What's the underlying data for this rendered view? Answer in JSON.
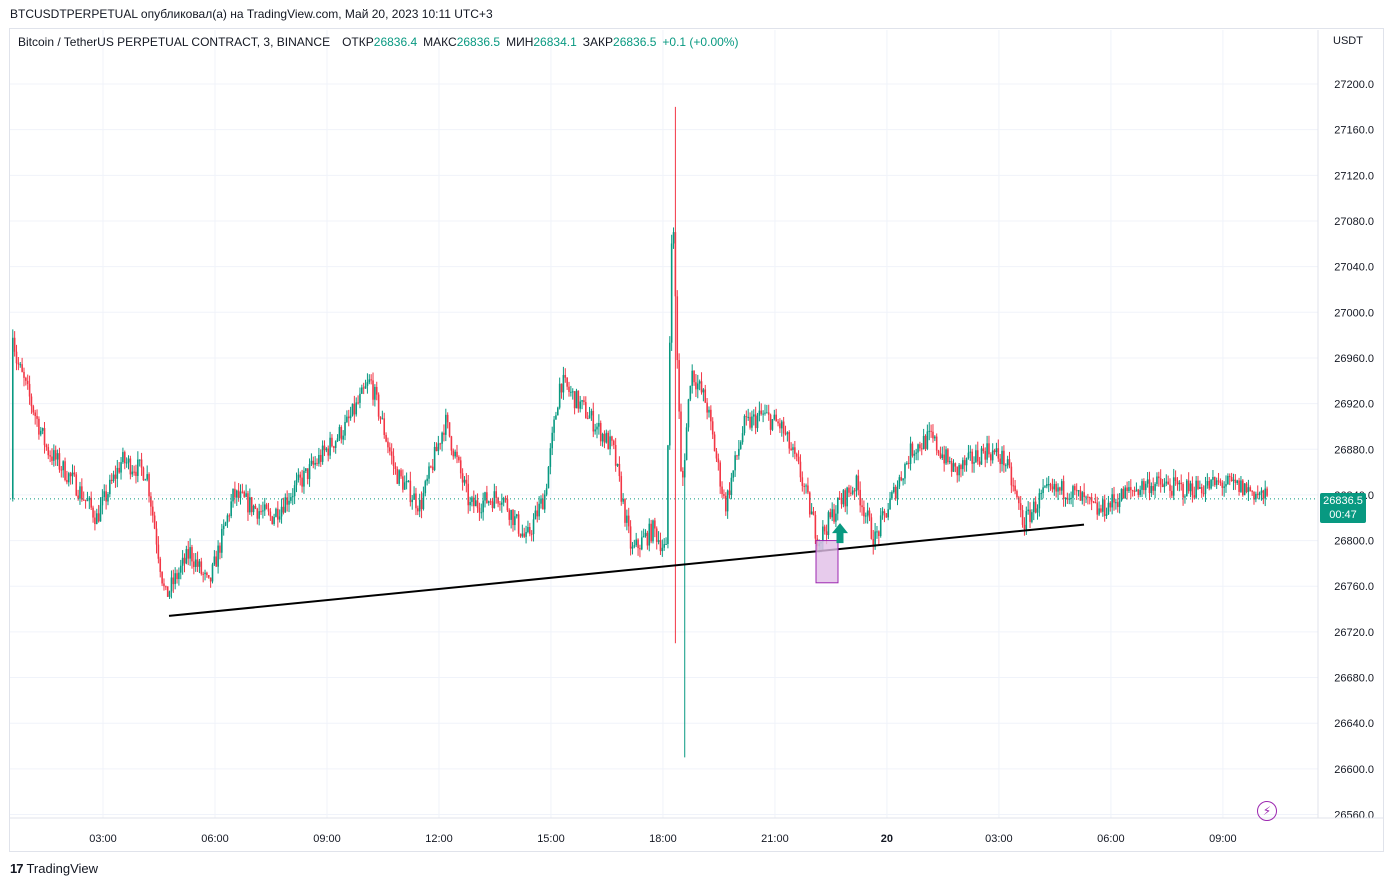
{
  "header": {
    "caption": "BTCUSDTPERPETUAL опубликовал(а) на TradingView.com, Май 20, 2023 10:11 UTC+3"
  },
  "legend": {
    "symbol": "Bitcoin / TetherUS PERPETUAL CONTRACT, 3, BINANCE",
    "open_label": "ОТКР",
    "open": "26836.4",
    "high_label": "МАКС",
    "high": "26836.5",
    "low_label": "МИН",
    "low": "26834.1",
    "close_label": "ЗАКР",
    "close": "26836.5",
    "change": "+0.1 (+0.00%)"
  },
  "currency": "USDT",
  "price_tag": {
    "price": "26836.5",
    "countdown": "00:47"
  },
  "footer": {
    "brand": "TradingView",
    "logo": "tradingview-logo"
  },
  "colors": {
    "up": "#089981",
    "down": "#f23645",
    "trendline": "#000000",
    "highlight_fill": "#e1bee7",
    "highlight_border": "#9c27b0",
    "grid": "#f0f3fa"
  },
  "chart_data": {
    "type": "candlestick",
    "x_tick_labels": [
      "03:00",
      "06:00",
      "09:00",
      "12:00",
      "15:00",
      "18:00",
      "21:00",
      "20",
      "03:00",
      "06:00",
      "09:00"
    ],
    "y_tick_labels": [
      "27200.0",
      "27160.0",
      "27120.0",
      "27080.0",
      "27040.0",
      "27000.0",
      "26960.0",
      "26920.0",
      "26880.0",
      "26840.0",
      "26800.0",
      "26760.0",
      "26720.0",
      "26680.0",
      "26640.0",
      "26600.0",
      "26560.0"
    ],
    "ylim": [
      26552,
      27238
    ],
    "current_price": 26836.5,
    "grid": true,
    "trendline": {
      "from_time": "04:40",
      "from_price": 26734,
      "to_time": "05:10 (May 20)",
      "to_price": 26814
    },
    "highlight_box": {
      "price_top": 26800,
      "price_bottom": 26763
    },
    "signal_arrow": {
      "direction": "up",
      "price": 26803
    },
    "anchor_points": [
      {
        "t": "00:15",
        "p": 26830
      },
      {
        "t": "00:25",
        "p": 27040
      },
      {
        "t": "00:40",
        "p": 26960
      },
      {
        "t": "01:30",
        "p": 26880
      },
      {
        "t": "02:15",
        "p": 26850
      },
      {
        "t": "02:50",
        "p": 26820
      },
      {
        "t": "03:30",
        "p": 26870
      },
      {
        "t": "04:10",
        "p": 26860
      },
      {
        "t": "04:40",
        "p": 26750
      },
      {
        "t": "05:20",
        "p": 26790
      },
      {
        "t": "05:50",
        "p": 26760
      },
      {
        "t": "06:30",
        "p": 26840
      },
      {
        "t": "07:30",
        "p": 26820
      },
      {
        "t": "08:30",
        "p": 26860
      },
      {
        "t": "09:30",
        "p": 26900
      },
      {
        "t": "10:10",
        "p": 26940
      },
      {
        "t": "10:50",
        "p": 26860
      },
      {
        "t": "11:30",
        "p": 26830
      },
      {
        "t": "12:10",
        "p": 26905
      },
      {
        "t": "12:50",
        "p": 26830
      },
      {
        "t": "13:40",
        "p": 26840
      },
      {
        "t": "14:20",
        "p": 26800
      },
      {
        "t": "14:50",
        "p": 26840
      },
      {
        "t": "15:15",
        "p": 26940
      },
      {
        "t": "16:00",
        "p": 26910
      },
      {
        "t": "16:40",
        "p": 26880
      },
      {
        "t": "17:10",
        "p": 26790
      },
      {
        "t": "17:45",
        "p": 26810
      },
      {
        "t": "18:05",
        "p": 26790
      },
      {
        "t": "18:15",
        "p": 27100
      },
      {
        "t": "18:30",
        "p": 26840
      },
      {
        "t": "18:45",
        "p": 26950
      },
      {
        "t": "19:10",
        "p": 26920
      },
      {
        "t": "19:40",
        "p": 26830
      },
      {
        "t": "20:10",
        "p": 26900
      },
      {
        "t": "20:40",
        "p": 26910
      },
      {
        "t": "21:10",
        "p": 26900
      },
      {
        "t": "21:40",
        "p": 26860
      },
      {
        "t": "22:10",
        "p": 26800
      },
      {
        "t": "22:40",
        "p": 26830
      },
      {
        "t": "23:10",
        "p": 26850
      },
      {
        "t": "23:40",
        "p": 26800
      },
      {
        "t": "00:10",
        "p": 26840
      },
      {
        "t": "00:40",
        "p": 26880
      },
      {
        "t": "01:10",
        "p": 26890
      },
      {
        "t": "01:50",
        "p": 26860
      },
      {
        "t": "02:40",
        "p": 26880
      },
      {
        "t": "03:10",
        "p": 26870
      },
      {
        "t": "03:40",
        "p": 26815
      },
      {
        "t": "04:10",
        "p": 26840
      },
      {
        "t": "04:50",
        "p": 26845
      },
      {
        "t": "05:40",
        "p": 26825
      },
      {
        "t": "06:20",
        "p": 26840
      },
      {
        "t": "07:00",
        "p": 26850
      },
      {
        "t": "08:00",
        "p": 26845
      },
      {
        "t": "09:00",
        "p": 26850
      },
      {
        "t": "09:40",
        "p": 26845
      },
      {
        "t": "10:11",
        "p": 26836.5
      }
    ]
  }
}
